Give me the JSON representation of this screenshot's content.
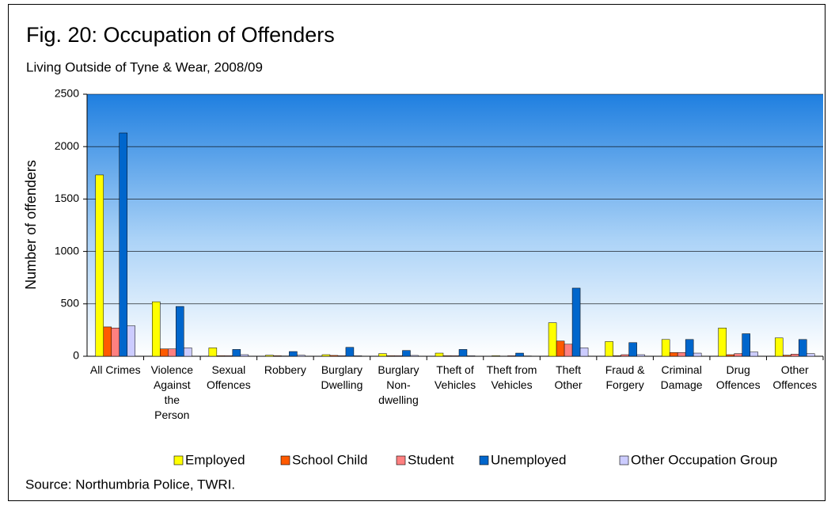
{
  "chart_data": {
    "type": "bar",
    "title": "Fig. 20: Occupation of Offenders",
    "subtitle": "Living Outside of Tyne & Wear, 2008/09",
    "y_label": "Number of offenders",
    "source": "Source: Northumbria Police, TWRI.",
    "categories": [
      "All Crimes",
      "Violence Against the Person",
      "Sexual Offences",
      "Robbery",
      "Burglary Dwelling",
      "Burglary Non-dwelling",
      "Theft of Vehicles",
      "Theft from Vehicles",
      "Theft Other",
      "Fraud & Forgery",
      "Criminal Damage",
      "Drug Offences",
      "Other Offences"
    ],
    "series": [
      {
        "name": "Employed",
        "color": "#ffff00",
        "values": [
          1730,
          520,
          80,
          10,
          15,
          25,
          30,
          5,
          320,
          140,
          160,
          270,
          175
        ]
      },
      {
        "name": "School Child",
        "color": "#ff5a00",
        "values": [
          280,
          70,
          5,
          5,
          8,
          5,
          5,
          2,
          145,
          5,
          35,
          15,
          10
        ]
      },
      {
        "name": "Student",
        "color": "#ff8080",
        "values": [
          270,
          70,
          5,
          3,
          5,
          5,
          5,
          5,
          115,
          15,
          35,
          25,
          20
        ]
      },
      {
        "name": "Unemployed",
        "color": "#0066cc",
        "values": [
          2130,
          475,
          65,
          45,
          85,
          55,
          65,
          30,
          650,
          130,
          160,
          215,
          160
        ]
      },
      {
        "name": "Other Occupation Group",
        "color": "#ccccff",
        "values": [
          290,
          80,
          15,
          10,
          5,
          8,
          5,
          3,
          80,
          15,
          30,
          40,
          25
        ]
      }
    ],
    "ylim": [
      0,
      2500
    ],
    "yticks": [
      0,
      500,
      1000,
      1500,
      2000,
      2500
    ],
    "grid": true,
    "legend": "bottom"
  }
}
